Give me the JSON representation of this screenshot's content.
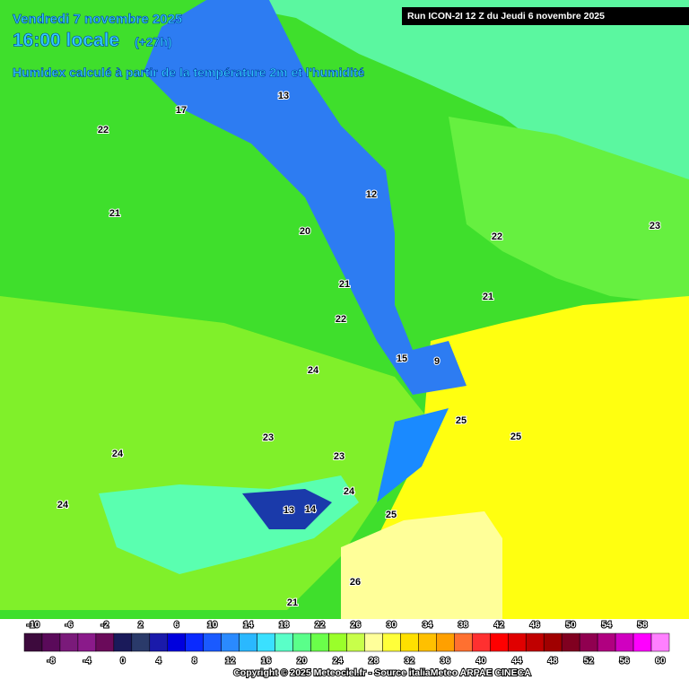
{
  "header": {
    "date": "Vendredi 7 novembre 2025",
    "time": "16:00 locale",
    "lead": "(+27h)",
    "subtitle": "Humidex calculé à partir de la température 2m et l'humidité",
    "run": "Run ICON-2I 12 Z du Jeudi 6 novembre 2025"
  },
  "map_labels": [
    "22",
    "21",
    "22",
    "21",
    "20",
    "24",
    "23",
    "24",
    "24",
    "23",
    "24",
    "25",
    "25",
    "25",
    "26",
    "21",
    "22",
    "23",
    "12",
    "13",
    "14",
    "9",
    "17",
    "15",
    "13",
    "21"
  ],
  "colorbar": {
    "labels": [
      -10,
      -8,
      -6,
      -4,
      -2,
      0,
      2,
      4,
      6,
      8,
      10,
      12,
      14,
      16,
      18,
      20,
      22,
      24,
      26,
      28,
      30,
      32,
      34,
      36,
      38,
      40,
      42,
      44,
      46,
      48,
      50,
      52,
      54,
      56,
      58,
      60
    ],
    "colors": [
      "#3d0a3d",
      "#5a0a5a",
      "#7a1a7a",
      "#8a1a8a",
      "#6a0a5a",
      "#1a1a5a",
      "#2a3a6a",
      "#1a1aaa",
      "#0000dd",
      "#0a2aff",
      "#1a5aff",
      "#2a8aff",
      "#2ab8ff",
      "#3ae0ff",
      "#5affc8",
      "#5aff8a",
      "#6aff4a",
      "#9aff2a",
      "#c8ff4a",
      "#ffff9a",
      "#ffff3a",
      "#ffe000",
      "#ffc000",
      "#ffa000",
      "#ff7030",
      "#ff3030",
      "#ff0000",
      "#e00000",
      "#c00000",
      "#a00000",
      "#800020",
      "#900050",
      "#b00080",
      "#d000c0",
      "#ff00ff",
      "#ff80ff"
    ]
  },
  "footer": {
    "copyright": "Copyright © 2025 Meteociel.fr - Source italiaMeteo ARPAE CINECA"
  }
}
